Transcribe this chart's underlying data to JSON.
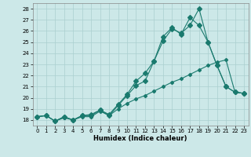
{
  "title": "",
  "xlabel": "Humidex (Indice chaleur)",
  "bg_color": "#cce8e8",
  "grid_color": "#aacfcf",
  "line_color": "#1a7a6e",
  "xlim": [
    -0.5,
    23.5
  ],
  "ylim": [
    17.5,
    28.5
  ],
  "yticks": [
    18,
    19,
    20,
    21,
    22,
    23,
    24,
    25,
    26,
    27,
    28
  ],
  "xticks": [
    0,
    1,
    2,
    3,
    4,
    5,
    6,
    7,
    8,
    9,
    10,
    11,
    12,
    13,
    14,
    15,
    16,
    17,
    18,
    19,
    20,
    21,
    22,
    23
  ],
  "line1_x": [
    0,
    1,
    2,
    3,
    4,
    5,
    6,
    7,
    8,
    9,
    10,
    11,
    12,
    13,
    14,
    15,
    16,
    17,
    18,
    19,
    20,
    21,
    22,
    23
  ],
  "line1_y": [
    18.3,
    18.4,
    17.9,
    18.3,
    18.0,
    18.4,
    18.4,
    18.9,
    18.4,
    19.3,
    20.2,
    21.1,
    21.5,
    23.3,
    25.1,
    26.2,
    25.8,
    26.5,
    28.0,
    25.0,
    22.9,
    21.0,
    20.5,
    20.4
  ],
  "line2_x": [
    0,
    1,
    2,
    3,
    4,
    5,
    6,
    7,
    8,
    9,
    10,
    11,
    12,
    13,
    14,
    15,
    16,
    17,
    18,
    19,
    20,
    21,
    22,
    23
  ],
  "line2_y": [
    18.3,
    18.4,
    17.9,
    18.3,
    18.0,
    18.4,
    18.5,
    18.9,
    18.5,
    19.4,
    20.3,
    21.5,
    22.2,
    23.3,
    25.5,
    26.3,
    25.7,
    27.2,
    26.5,
    25.0,
    22.9,
    21.0,
    20.5,
    20.4
  ],
  "line3_x": [
    0,
    1,
    2,
    3,
    4,
    5,
    6,
    7,
    8,
    9,
    10,
    11,
    12,
    13,
    14,
    15,
    16,
    17,
    18,
    19,
    20,
    21,
    22,
    23
  ],
  "line3_y": [
    18.3,
    18.4,
    17.9,
    18.2,
    18.0,
    18.3,
    18.3,
    18.8,
    18.4,
    19.0,
    19.5,
    19.9,
    20.2,
    20.6,
    21.0,
    21.4,
    21.7,
    22.1,
    22.5,
    22.9,
    23.2,
    23.4,
    20.5,
    20.4
  ]
}
